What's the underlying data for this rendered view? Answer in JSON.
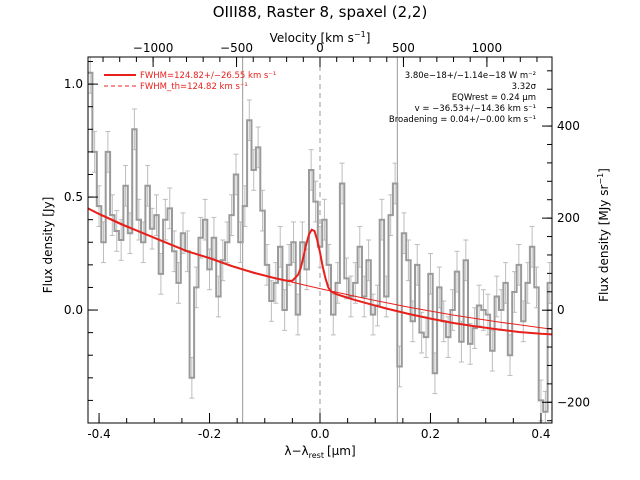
{
  "chart_data": {
    "type": "line",
    "title": "OIII88, Raster 8, spaxel (2,2)",
    "xlabel": "λ−λrest [μm]",
    "xlabel_parts": {
      "main": "λ−λ",
      "sub": "rest",
      "unit": "[μm]"
    },
    "ylabel": "Flux density [Jy]",
    "top_xlabel": "Velocity [km s⁻¹]",
    "top_xlabel_parts": {
      "main": "Velocity [km s",
      "sup": "−1",
      "end": "]"
    },
    "right_ylabel": "Flux density [MJy sr⁻¹]",
    "right_ylabel_parts": {
      "main": "Flux density [MJy sr",
      "sup": "−1",
      "end": "]"
    },
    "xlim": [
      -0.42,
      0.42
    ],
    "ylim": [
      -0.5,
      1.12
    ],
    "top_xlim": [
      -1390,
      1390
    ],
    "right_ylim": [
      -245,
      550
    ],
    "x_ticks": [
      "-0.4",
      "-0.2",
      "0.0",
      "0.2",
      "0.4"
    ],
    "x_tick_values": [
      -0.4,
      -0.2,
      0.0,
      0.2,
      0.4
    ],
    "y_ticks": [
      "0.0",
      "0.5",
      "1.0"
    ],
    "y_tick_values": [
      0.0,
      0.5,
      1.0
    ],
    "top_ticks": [
      "−1000",
      "−500",
      "0",
      "500",
      "1000"
    ],
    "top_tick_values": [
      -1000,
      -500,
      0,
      500,
      1000
    ],
    "right_ticks": [
      "−200",
      "0",
      "200",
      "400"
    ],
    "right_tick_values": [
      -200,
      0,
      200,
      400
    ],
    "legend_position": "top-left",
    "legend": [
      {
        "label": "FWHM=124.82+/−26.55 km s⁻¹",
        "style": "solid",
        "color": "#e8201b"
      },
      {
        "label": "FWHM_th=124.82 km s⁻¹",
        "style": "dashed",
        "color": "#e8201b"
      }
    ],
    "annotations": [
      "3.80e−18+/−1.14e−18 W m⁻²",
      "3.32σ",
      "EQWrest = 0.24 μm",
      "v = −36.53+/−14.36 km s⁻¹",
      "Broadening = 0.04+/−0.00 km s⁻¹"
    ],
    "vertical_lines": [
      {
        "x": -0.14,
        "style": "solid"
      },
      {
        "x": 0.0,
        "style": "dashed"
      },
      {
        "x": 0.14,
        "style": "solid"
      }
    ],
    "series": [
      {
        "name": "spectrum",
        "style": "step",
        "color": "#9a9a9a",
        "error_color": "#bdbdbd",
        "x": [
          -0.416,
          -0.408,
          -0.4,
          -0.392,
          -0.384,
          -0.376,
          -0.368,
          -0.36,
          -0.352,
          -0.344,
          -0.336,
          -0.328,
          -0.32,
          -0.312,
          -0.304,
          -0.296,
          -0.288,
          -0.28,
          -0.272,
          -0.264,
          -0.256,
          -0.248,
          -0.24,
          -0.232,
          -0.224,
          -0.216,
          -0.208,
          -0.2,
          -0.192,
          -0.184,
          -0.176,
          -0.168,
          -0.16,
          -0.152,
          -0.144,
          -0.136,
          -0.128,
          -0.12,
          -0.112,
          -0.104,
          -0.096,
          -0.088,
          -0.08,
          -0.072,
          -0.064,
          -0.056,
          -0.048,
          -0.04,
          -0.032,
          -0.024,
          -0.016,
          -0.008,
          0.0,
          0.008,
          0.016,
          0.024,
          0.032,
          0.04,
          0.048,
          0.056,
          0.064,
          0.072,
          0.08,
          0.088,
          0.096,
          0.104,
          0.112,
          0.12,
          0.128,
          0.136,
          0.144,
          0.152,
          0.16,
          0.168,
          0.176,
          0.184,
          0.192,
          0.2,
          0.208,
          0.216,
          0.224,
          0.232,
          0.24,
          0.248,
          0.256,
          0.264,
          0.272,
          0.28,
          0.288,
          0.296,
          0.304,
          0.312,
          0.32,
          0.328,
          0.336,
          0.344,
          0.352,
          0.36,
          0.368,
          0.376,
          0.384,
          0.392,
          0.4,
          0.408,
          0.416
        ],
        "y": [
          1.05,
          0.7,
          0.46,
          0.3,
          0.7,
          0.42,
          0.35,
          0.31,
          0.55,
          0.34,
          0.8,
          0.4,
          0.3,
          0.55,
          0.36,
          0.42,
          0.16,
          0.4,
          0.45,
          0.26,
          0.12,
          0.34,
          0.26,
          -0.3,
          0.1,
          0.32,
          0.4,
          0.18,
          0.32,
          0.06,
          0.22,
          0.3,
          0.42,
          0.6,
          0.3,
          0.46,
          0.84,
          0.62,
          0.72,
          0.44,
          0.2,
          0.04,
          0.12,
          0.28,
          0.0,
          0.2,
          0.3,
          -0.02,
          0.3,
          0.18,
          0.62,
          0.48,
          0.28,
          0.4,
          0.2,
          -0.02,
          0.12,
          0.56,
          0.14,
          0.06,
          0.12,
          0.28,
          0.06,
          0.22,
          -0.02,
          0.02,
          0.4,
          0.06,
          0.42,
          0.56,
          -0.25,
          0.34,
          0.22,
          -0.05,
          0.2,
          -0.1,
          -0.12,
          0.16,
          -0.28,
          0.1,
          -0.05,
          -0.12,
          0.0,
          0.17,
          -0.14,
          0.22,
          -0.15,
          -0.08,
          0.02,
          0.0,
          -0.02,
          -0.18,
          0.06,
          0.0,
          0.12,
          -0.2,
          0.08,
          0.2,
          -0.05,
          0.12,
          0.28,
          0.1,
          -0.4,
          -0.45,
          0.12
        ],
        "errors": [
          0.09,
          0.09,
          0.09,
          0.09,
          0.09,
          0.09,
          0.09,
          0.09,
          0.09,
          0.09,
          0.09,
          0.09,
          0.09,
          0.09,
          0.09,
          0.09,
          0.09,
          0.09,
          0.09,
          0.09,
          0.09,
          0.09,
          0.09,
          0.09,
          0.09,
          0.09,
          0.09,
          0.09,
          0.09,
          0.09,
          0.09,
          0.09,
          0.09,
          0.09,
          0.09,
          0.09,
          0.09,
          0.09,
          0.09,
          0.09,
          0.09,
          0.09,
          0.09,
          0.09,
          0.09,
          0.09,
          0.09,
          0.09,
          0.09,
          0.09,
          0.09,
          0.09,
          0.09,
          0.09,
          0.09,
          0.09,
          0.09,
          0.09,
          0.09,
          0.09,
          0.09,
          0.09,
          0.09,
          0.09,
          0.09,
          0.09,
          0.09,
          0.09,
          0.09,
          0.09,
          0.09,
          0.09,
          0.09,
          0.09,
          0.09,
          0.09,
          0.09,
          0.09,
          0.09,
          0.09,
          0.09,
          0.09,
          0.09,
          0.09,
          0.09,
          0.09,
          0.09,
          0.09,
          0.09,
          0.09,
          0.09,
          0.09,
          0.09,
          0.09,
          0.09,
          0.09,
          0.09,
          0.09,
          0.09,
          0.09,
          0.09,
          0.09,
          0.09,
          0.09,
          0.09
        ]
      },
      {
        "name": "FWHM=124.82+/−26.55 km s⁻¹",
        "style": "line",
        "color": "#e8201b",
        "x": [
          -0.42,
          -0.4,
          -0.36,
          -0.32,
          -0.28,
          -0.24,
          -0.2,
          -0.16,
          -0.12,
          -0.08,
          -0.06,
          -0.05,
          -0.04,
          -0.035,
          -0.03,
          -0.025,
          -0.02,
          -0.015,
          -0.01,
          -0.005,
          0.0,
          0.005,
          0.01,
          0.015,
          0.02,
          0.03,
          0.04,
          0.06,
          0.08,
          0.12,
          0.16,
          0.2,
          0.24,
          0.28,
          0.32,
          0.36,
          0.4,
          0.42
        ],
        "y": [
          0.45,
          0.425,
          0.38,
          0.34,
          0.3,
          0.26,
          0.23,
          0.195,
          0.165,
          0.14,
          0.13,
          0.13,
          0.155,
          0.185,
          0.235,
          0.29,
          0.335,
          0.355,
          0.35,
          0.31,
          0.255,
          0.19,
          0.14,
          0.1,
          0.082,
          0.07,
          0.062,
          0.047,
          0.033,
          0.007,
          -0.017,
          -0.038,
          -0.057,
          -0.072,
          -0.085,
          -0.097,
          -0.105,
          -0.108
        ]
      },
      {
        "name": "baseline",
        "style": "thin-line",
        "color": "#e8201b",
        "x": [
          -0.42,
          -0.32,
          -0.24,
          -0.16,
          -0.08,
          0.0,
          0.08,
          0.16,
          0.24,
          0.32,
          0.42
        ],
        "y": [
          0.45,
          0.34,
          0.26,
          0.195,
          0.14,
          0.095,
          0.052,
          0.013,
          -0.022,
          -0.052,
          -0.085
        ]
      }
    ]
  },
  "colors": {
    "spectrum": "#9a9a9a",
    "error_bars": "#bdbdbd",
    "fit": "#e8201b",
    "vlines": "#9a9a9a",
    "axes": "#000000"
  }
}
